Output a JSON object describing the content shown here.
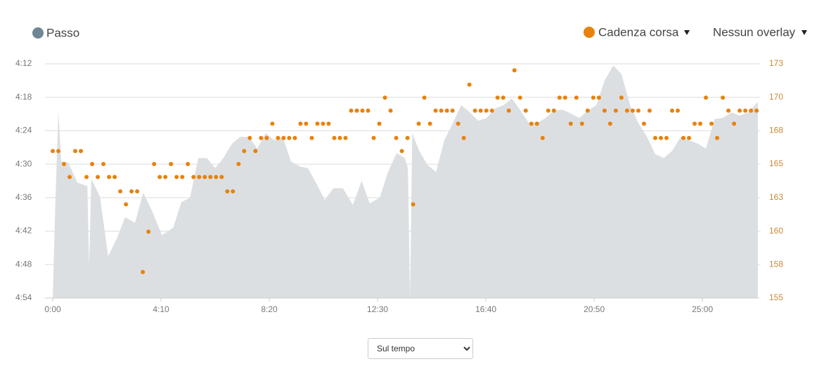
{
  "chart_data": {
    "type": "combo",
    "xlim": [
      0,
      1628
    ],
    "xticks": [
      {
        "value": 0,
        "label": "0:00"
      },
      {
        "value": 250,
        "label": "4:10"
      },
      {
        "value": 500,
        "label": "8:20"
      },
      {
        "value": 750,
        "label": "12:30"
      },
      {
        "value": 1000,
        "label": "16:40"
      },
      {
        "value": 1250,
        "label": "20:50"
      },
      {
        "value": 1500,
        "label": "25:00"
      }
    ],
    "ylim": [
      294,
      252
    ],
    "yticks": [
      {
        "value": 252,
        "label": "4:12"
      },
      {
        "value": 258,
        "label": "4:18"
      },
      {
        "value": 264,
        "label": "4:24"
      },
      {
        "value": 270,
        "label": "4:30"
      },
      {
        "value": 276,
        "label": "4:36"
      },
      {
        "value": 282,
        "label": "4:42"
      },
      {
        "value": 288,
        "label": "4:48"
      },
      {
        "value": 294,
        "label": "4:54"
      }
    ],
    "y2lim": [
      155,
      173
    ],
    "y2ticks": [
      155,
      {
        "value": 157.57,
        "label": "158"
      },
      {
        "value": 160.14,
        "label": "160"
      },
      {
        "value": 162.71,
        "label": "163"
      },
      {
        "value": 165.29,
        "label": "165"
      },
      {
        "value": 167.86,
        "label": "168"
      },
      {
        "value": 170.43,
        "label": "170"
      },
      173
    ],
    "grid": true,
    "overlay": "Nessun overlay",
    "x_mode": "Sul tempo",
    "series": [
      {
        "name": "Passo",
        "type": "area",
        "color": "#6e8594",
        "fill": "#dcdfe2",
        "x": [
          0,
          6.5,
          13,
          19.5,
          36,
          57,
          80,
          84,
          89,
          109,
          128,
          148,
          167,
          190,
          209,
          229,
          252,
          278,
          297,
          317,
          336,
          356,
          375,
          394,
          414,
          433,
          453,
          472,
          492,
          511,
          531,
          550,
          570,
          589,
          609,
          628,
          648,
          670,
          693,
          713,
          732,
          755,
          774,
          794,
          813,
          820,
          825,
          830,
          846,
          865,
          885,
          904,
          924,
          943,
          963,
          982,
          1002,
          1021,
          1041,
          1060,
          1080,
          1099,
          1119,
          1138,
          1157,
          1177,
          1196,
          1216,
          1235,
          1255,
          1274,
          1294,
          1313,
          1333,
          1352,
          1372,
          1391,
          1411,
          1430,
          1450,
          1469,
          1489,
          1508,
          1528,
          1547,
          1567,
          1586,
          1606,
          1628
        ],
        "values": [
          294,
          275.8,
          260.4,
          269.5,
          269.7,
          273.3,
          273.9,
          288.3,
          272.6,
          275.8,
          286.5,
          283.3,
          279.5,
          280.5,
          275.1,
          278.3,
          282.7,
          281.4,
          276.8,
          276.0,
          268.9,
          268.9,
          270.7,
          268.9,
          266.3,
          265.1,
          265.1,
          267.2,
          264.4,
          265.7,
          265.1,
          269.5,
          270.4,
          270.7,
          273.5,
          276.4,
          274.3,
          274.3,
          277.3,
          273.0,
          277.0,
          276.0,
          271.4,
          268.0,
          268.9,
          270.7,
          294,
          264.4,
          267.6,
          270.1,
          271.4,
          265.7,
          262.6,
          259.4,
          260.7,
          262.2,
          261.7,
          260.0,
          259.4,
          258.2,
          260.4,
          262.6,
          262.6,
          261.7,
          260.4,
          260.2,
          260.9,
          261.7,
          260.4,
          259.4,
          255.0,
          252.3,
          253.8,
          259.4,
          262.6,
          265.1,
          268.2,
          268.9,
          267.6,
          265.1,
          265.7,
          266.3,
          267.2,
          261.9,
          261.7,
          260.7,
          261.3,
          260.7,
          258.8
        ]
      },
      {
        "name": "Cadenza corsa",
        "type": "scatter",
        "axis": "y2",
        "color": "#e8820c",
        "x": [
          0,
          13,
          26,
          39,
          52,
          65,
          78,
          91,
          104,
          117,
          130,
          143,
          156,
          169,
          182,
          195,
          208,
          221,
          234,
          247,
          260,
          273,
          286,
          299,
          312,
          325,
          338,
          351,
          364,
          377,
          390,
          403,
          416,
          429,
          442,
          455,
          468,
          481,
          494,
          507,
          520,
          533,
          546,
          559,
          572,
          585,
          598,
          611,
          624,
          637,
          650,
          663,
          676,
          689,
          702,
          715,
          728,
          741,
          754,
          767,
          780,
          793,
          806,
          819,
          832,
          845,
          858,
          871,
          884,
          897,
          910,
          923,
          936,
          949,
          962,
          975,
          988,
          1001,
          1014,
          1027,
          1040,
          1053,
          1066,
          1079,
          1092,
          1105,
          1118,
          1131,
          1144,
          1157,
          1170,
          1183,
          1196,
          1209,
          1222,
          1235,
          1248,
          1261,
          1274,
          1287,
          1300,
          1313,
          1326,
          1339,
          1352,
          1365,
          1378,
          1391,
          1404,
          1417,
          1430,
          1443,
          1456,
          1469,
          1482,
          1495,
          1508,
          1521,
          1534,
          1547,
          1560,
          1573,
          1586,
          1599,
          1612,
          1625
        ],
        "values": [
          166.3,
          166.3,
          165.3,
          164.3,
          166.3,
          166.3,
          164.3,
          165.3,
          164.3,
          165.3,
          164.3,
          164.3,
          163.2,
          162.2,
          163.2,
          163.2,
          157.0,
          160.1,
          165.3,
          164.3,
          164.3,
          165.3,
          164.3,
          164.3,
          165.3,
          164.3,
          164.3,
          164.3,
          164.3,
          164.3,
          164.3,
          163.2,
          163.2,
          165.3,
          166.3,
          167.3,
          166.3,
          167.3,
          167.3,
          168.4,
          167.3,
          167.3,
          167.3,
          167.3,
          168.4,
          168.4,
          167.3,
          168.4,
          168.4,
          168.4,
          167.3,
          167.3,
          167.3,
          169.4,
          169.4,
          169.4,
          169.4,
          167.3,
          168.4,
          170.4,
          169.4,
          167.3,
          166.3,
          167.3,
          162.2,
          168.4,
          170.4,
          168.4,
          169.4,
          169.4,
          169.4,
          169.4,
          168.4,
          167.3,
          171.4,
          169.4,
          169.4,
          169.4,
          169.4,
          170.4,
          170.4,
          169.4,
          172.5,
          170.4,
          169.4,
          168.4,
          168.4,
          167.3,
          169.4,
          169.4,
          170.4,
          170.4,
          168.4,
          170.4,
          168.4,
          169.4,
          170.4,
          170.4,
          169.4,
          168.4,
          169.4,
          170.4,
          169.4,
          169.4,
          169.4,
          168.4,
          169.4,
          167.3,
          167.3,
          167.3,
          169.4,
          169.4,
          167.3,
          167.3,
          168.4,
          168.4,
          170.4,
          168.4,
          167.3,
          170.4,
          169.4,
          168.4,
          169.4,
          169.4,
          169.4,
          169.4
        ]
      }
    ]
  }
}
